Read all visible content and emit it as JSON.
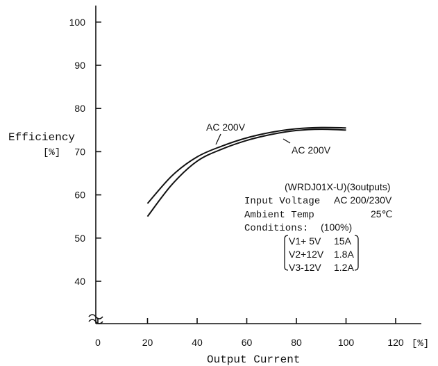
{
  "chart_data": {
    "type": "line",
    "title": "",
    "xlabel": "Output Current",
    "x_unit": "[%]",
    "ylabel": "Efficiency",
    "y_unit": "[%]",
    "xlim": [
      0,
      120
    ],
    "ylim": [
      30,
      100
    ],
    "x_ticks": [
      "0",
      "20",
      "40",
      "60",
      "80",
      "100",
      "120"
    ],
    "y_ticks": [
      "40",
      "50",
      "60",
      "70",
      "80",
      "90",
      "100"
    ],
    "grid": false,
    "series": [
      {
        "name": "AC 200V",
        "x": [
          20,
          30,
          40,
          50,
          60,
          70,
          80,
          90,
          100
        ],
        "y": [
          58,
          64.5,
          68.8,
          71.3,
          73.2,
          74.5,
          75.3,
          75.6,
          75.5
        ]
      },
      {
        "name": "AC 200V",
        "x": [
          20,
          30,
          40,
          50,
          60,
          70,
          80,
          90,
          100
        ],
        "y": [
          55,
          62.5,
          67.8,
          70.6,
          72.6,
          74.0,
          74.9,
          75.2,
          75.0
        ]
      }
    ],
    "annotations": {
      "model": "(WRDJ01X-U)(3outputs)",
      "input_voltage_label": "Input Voltage",
      "input_voltage_value": "AC 200/230V",
      "ambient_label": "Ambient Temp",
      "ambient_value": "25℃",
      "conditions_label": "Conditions:",
      "conditions_value": "(100%)",
      "outputs": [
        {
          "name": "V1+ 5V",
          "current": "15A"
        },
        {
          "name": "V2+12V",
          "current": "1.8A"
        },
        {
          "name": "V3-12V",
          "current": "1.2A"
        }
      ]
    }
  }
}
